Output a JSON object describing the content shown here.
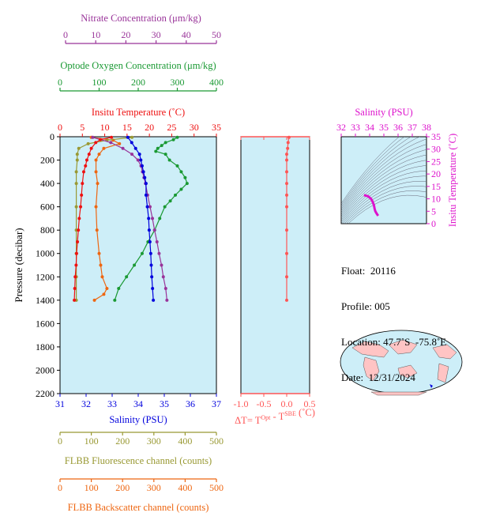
{
  "colors": {
    "nitrate": "#993399",
    "oxygen": "#1a9933",
    "temperature": "#ee1111",
    "salinity": "#0000dd",
    "fluorescence": "#999933",
    "backscatter": "#ee6611",
    "dt": "#ff5555",
    "panel_bg": "#cdeef8",
    "magenta": "#dd11cc"
  },
  "axes": {
    "nitrate": {
      "title": "Nitrate Concentration (μm/kg)",
      "ticks": [
        "0",
        "10",
        "20",
        "30",
        "40",
        "50"
      ]
    },
    "oxygen": {
      "title": "Optode Oxygen Concentration (μm/kg)",
      "ticks": [
        "0",
        "100",
        "200",
        "300",
        "400"
      ]
    },
    "temperature": {
      "title": "Insitu Temperature (˚C)",
      "ticks": [
        "0",
        "5",
        "10",
        "15",
        "20",
        "25",
        "30",
        "35"
      ]
    },
    "pressure": {
      "title": "Pressure (decibar)",
      "ticks": [
        "0",
        "200",
        "400",
        "600",
        "800",
        "1000",
        "1200",
        "1400",
        "1600",
        "1800",
        "2000",
        "2200"
      ]
    },
    "salinity": {
      "title": "Salinity (PSU)",
      "ticks": [
        "31",
        "32",
        "33",
        "34",
        "35",
        "36",
        "37"
      ]
    },
    "fluorescence": {
      "title": "FLBB Fluorescence channel (counts)",
      "ticks": [
        "0",
        "100",
        "200",
        "300",
        "400",
        "500"
      ]
    },
    "backscatter": {
      "title": "FLBB Backscatter channel (counts)",
      "ticks": [
        "0",
        "100",
        "200",
        "300",
        "400",
        "500"
      ]
    },
    "dt": {
      "title_main": "ΔT= T",
      "title_sup1": "Opt",
      "title_mid": " - T",
      "title_sup2": "SBE",
      "title_end": " (˚C)",
      "ticks": [
        "-1.0",
        "-0.5",
        "0.0",
        "0.5"
      ]
    },
    "ts_salinity": {
      "title": "Salinity (PSU)",
      "ticks": [
        "32",
        "33",
        "34",
        "35",
        "36",
        "37",
        "38"
      ]
    },
    "ts_temperature": {
      "title": "Insitu Temperature (˚C)",
      "ticks": [
        "0",
        "5",
        "10",
        "15",
        "20",
        "25",
        "30",
        "35"
      ]
    }
  },
  "info": {
    "float_label": "Float:",
    "float_value": "20116",
    "profile_label": "Profile:",
    "profile_value": "005",
    "location_label": "Location:",
    "location_value": "47.7˚S  -75.8˚E",
    "date_label": "Date:",
    "date_value": "12/31/2024"
  },
  "chart_data": {
    "type": "line",
    "y_axis": {
      "label": "Pressure (decibar)",
      "range": [
        0,
        2200
      ],
      "inverted": true
    },
    "series": [
      {
        "name": "Nitrate Concentration (μm/kg)",
        "x_range": [
          0,
          50
        ],
        "points": [
          [
            9,
            5
          ],
          [
            15,
            50
          ],
          [
            19,
            100
          ],
          [
            22,
            150
          ],
          [
            24,
            200
          ],
          [
            25,
            250
          ],
          [
            25.5,
            300
          ],
          [
            26,
            350
          ],
          [
            26.5,
            400
          ],
          [
            27.2,
            500
          ],
          [
            28,
            600
          ],
          [
            28.8,
            700
          ],
          [
            29.5,
            800
          ],
          [
            30.3,
            900
          ],
          [
            31,
            1000
          ],
          [
            31.8,
            1100
          ],
          [
            32.4,
            1200
          ],
          [
            33.2,
            1300
          ],
          [
            33.6,
            1400
          ]
        ]
      },
      {
        "name": "Optode Oxygen Concentration (μm/kg)",
        "x_range": [
          0,
          400
        ],
        "points": [
          [
            300,
            5
          ],
          [
            290,
            25
          ],
          [
            270,
            50
          ],
          [
            260,
            75
          ],
          [
            250,
            100
          ],
          [
            245,
            125
          ],
          [
            270,
            150
          ],
          [
            280,
            200
          ],
          [
            300,
            250
          ],
          [
            310,
            300
          ],
          [
            320,
            350
          ],
          [
            325,
            400
          ],
          [
            310,
            450
          ],
          [
            295,
            500
          ],
          [
            282,
            550
          ],
          [
            268,
            600
          ],
          [
            255,
            700
          ],
          [
            242,
            800
          ],
          [
            225,
            900
          ],
          [
            210,
            1000
          ],
          [
            190,
            1100
          ],
          [
            170,
            1200
          ],
          [
            150,
            1300
          ],
          [
            140,
            1400
          ]
        ]
      },
      {
        "name": "Insitu Temperature (˚C)",
        "x_range": [
          0,
          35
        ],
        "points": [
          [
            11.5,
            5
          ],
          [
            9,
            25
          ],
          [
            8,
            50
          ],
          [
            7,
            100
          ],
          [
            6.5,
            150
          ],
          [
            6,
            200
          ],
          [
            5.7,
            250
          ],
          [
            5.3,
            300
          ],
          [
            5,
            400
          ],
          [
            4.8,
            500
          ],
          [
            4.6,
            600
          ],
          [
            4.3,
            700
          ],
          [
            4.1,
            800
          ],
          [
            3.9,
            900
          ],
          [
            3.7,
            1000
          ],
          [
            3.6,
            1100
          ],
          [
            3.4,
            1200
          ],
          [
            3.3,
            1300
          ],
          [
            3.2,
            1400
          ]
        ]
      },
      {
        "name": "Salinity (PSU)",
        "x_range": [
          31,
          37
        ],
        "points": [
          [
            33.6,
            5
          ],
          [
            33.75,
            50
          ],
          [
            33.9,
            100
          ],
          [
            34.05,
            150
          ],
          [
            34.1,
            200
          ],
          [
            34.15,
            250
          ],
          [
            34.2,
            300
          ],
          [
            34.25,
            350
          ],
          [
            34.3,
            400
          ],
          [
            34.3,
            500
          ],
          [
            34.35,
            600
          ],
          [
            34.4,
            700
          ],
          [
            34.42,
            800
          ],
          [
            34.45,
            900
          ],
          [
            34.48,
            1000
          ],
          [
            34.5,
            1100
          ],
          [
            34.52,
            1200
          ],
          [
            34.55,
            1300
          ],
          [
            34.58,
            1400
          ]
        ]
      },
      {
        "name": "FLBB Fluorescence channel (counts)",
        "x_range": [
          0,
          500
        ],
        "points": [
          [
            230,
            5
          ],
          [
            150,
            30
          ],
          [
            90,
            60
          ],
          [
            60,
            100
          ],
          [
            55,
            150
          ],
          [
            55,
            200
          ],
          [
            52,
            300
          ],
          [
            52,
            400
          ],
          [
            52,
            600
          ],
          [
            52,
            800
          ],
          [
            52,
            1000
          ],
          [
            52,
            1200
          ],
          [
            52,
            1400
          ]
        ]
      },
      {
        "name": "FLBB Backscatter channel (counts)",
        "x_range": [
          0,
          500
        ],
        "points": [
          [
            100,
            5
          ],
          [
            170,
            30
          ],
          [
            190,
            60
          ],
          [
            140,
            100
          ],
          [
            125,
            150
          ],
          [
            115,
            200
          ],
          [
            115,
            300
          ],
          [
            120,
            400
          ],
          [
            115,
            600
          ],
          [
            118,
            800
          ],
          [
            125,
            1000
          ],
          [
            130,
            1100
          ],
          [
            135,
            1200
          ],
          [
            150,
            1300
          ],
          [
            140,
            1350
          ],
          [
            110,
            1400
          ]
        ]
      },
      {
        "name": "ΔT= TOpt - TSBE (˚C)",
        "x_range": [
          -1.0,
          0.5
        ],
        "points": [
          [
            0.05,
            5
          ],
          [
            0.03,
            50
          ],
          [
            0.02,
            100
          ],
          [
            0.0,
            150
          ],
          [
            0.0,
            200
          ],
          [
            0.0,
            300
          ],
          [
            0.0,
            400
          ],
          [
            0.0,
            500
          ],
          [
            0.0,
            600
          ],
          [
            0.0,
            800
          ],
          [
            0.0,
            1000
          ],
          [
            0.0,
            1200
          ],
          [
            0.0,
            1400
          ]
        ]
      }
    ],
    "ts_diagram": {
      "x_label": "Salinity (PSU)",
      "x_range": [
        32,
        38
      ],
      "y_label": "Insitu Temperature (˚C)",
      "y_range": [
        0,
        35
      ],
      "points": [
        [
          33.6,
          11.5
        ],
        [
          33.9,
          11
        ],
        [
          34.1,
          10
        ],
        [
          34.2,
          9
        ],
        [
          34.3,
          7.5
        ],
        [
          34.35,
          6
        ],
        [
          34.4,
          5
        ],
        [
          34.5,
          4
        ],
        [
          34.6,
          3.2
        ]
      ]
    }
  }
}
